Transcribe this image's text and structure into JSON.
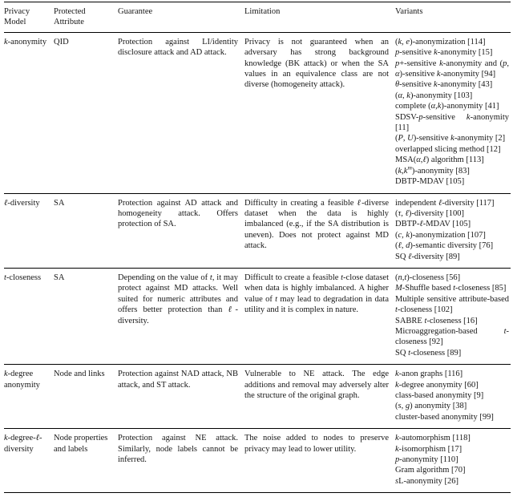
{
  "page": {
    "background_color": "#ffffff",
    "text_color": "#161616",
    "rule_color": "#000000"
  },
  "table": {
    "columns": [
      "Privacy Model",
      "Protected Attribute",
      "Guarantee",
      "Limitation",
      "Variants"
    ],
    "rows": [
      {
        "model": "*k*-anonymity",
        "attribute": "QID",
        "guarantee": "Protection against LI/identity disclosure attack and AD attack.",
        "limitation": "Privacy is not guaranteed when an adversary has strong background knowledge (BK attack) or when the SA values in an equivalence class are not diverse (homogeneity attack).",
        "variants": [
          "(*k, e*)-anonymization [114]",
          "*p*-sensitive *k*-anonymity [15]",
          "*p*+-sensitive *k*-anonymity and (*p*, *α*)-sensitive *k*-anonymity [94]",
          "*θ*-sensitive *k*-anonymity [43]",
          "(*α*, *k*)-anonymity [103]",
          "complete (*α*,*k*)-anonymity [41]",
          "SDSV-*p*-sensitive *k*-anonymity [11]",
          "(*P*, *U*)-sensitive *k*-anonymity [2]",
          "overlapped slicing method [12]",
          "MSA(*α*,*ℓ*) algorithm [113]",
          "(*k*,*k*^*m*^)-anonymity [83]",
          "DBTP-MDAV [105]"
        ]
      },
      {
        "model": "*ℓ*-diversity",
        "attribute": "SA",
        "guarantee": "Protection against AD attack and homogeneity attack.  Offers protection of SA.",
        "limitation": "Difficulty in creating a feasible *ℓ*-diverse dataset when the data is highly imbalanced (e.g., if the SA distribution is uneven). Does not protect against MD attack.",
        "variants": [
          "independent *ℓ*-diversity [117]",
          "(*τ*, *ℓ*)-diversity [100]",
          "DBTP-*ℓ*-MDAV [105]",
          "(*c*, *k*)-anonymization [107]",
          "(*ℓ*, *d*)-semantic diversity [76]",
          "SQ *ℓ*-diversity [89]"
        ]
      },
      {
        "model": "*t*-closeness",
        "attribute": "SA",
        "guarantee": "Depending on the value of *t*, it may protect against MD attacks. Well suited for numeric attributes and offers better protection than *ℓ*-diversity.",
        "limitation": "Difficult to create a feasible *t*-close dataset when data is highly imbalanced.  A higher value of *t* may lead to degradation in data utility and it is complex in nature.",
        "variants": [
          "(*n*,*t*)-closeness [56]",
          "*M*-Shuffle based *t*-closeness [85]",
          "Multiple sensitive attribute-based *t*-closeness [102]",
          "SABRE *t*-closeness [16]",
          "Microaggregation-based *t*-closeness [92]",
          "SQ *t*-closeness [89]"
        ]
      },
      {
        "model": "*k*-degree anonymity",
        "attribute": "Node and links",
        "guarantee": "Protection against NAD attack, NB attack, and ST attack.",
        "limitation": "Vulnerable to NE attack. The edge additions and removal may adversely alter the structure of the original graph.",
        "variants": [
          "*k*-anon graphs [116]",
          "*k*-degree anonymity [60]",
          "class-based anonymity [9]",
          "(*s*, *g*) anonymity [38]",
          "cluster-based anonymity [99]"
        ]
      },
      {
        "model": "*k*-degree-*ℓ*-diversity",
        "attribute": "Node properties and labels",
        "guarantee": "Protection against NE attack. Similarly, node labels cannot be inferred.",
        "limitation": "The noise added to nodes to preserve privacy may lead to lower utility.",
        "variants": [
          "*k*-automorphism [118]",
          "*k*-isomorphism [17]",
          "*p*-anonymity [110]",
          "Gram algorithm [70]",
          "*s*L-anonymity [26]"
        ]
      }
    ]
  }
}
